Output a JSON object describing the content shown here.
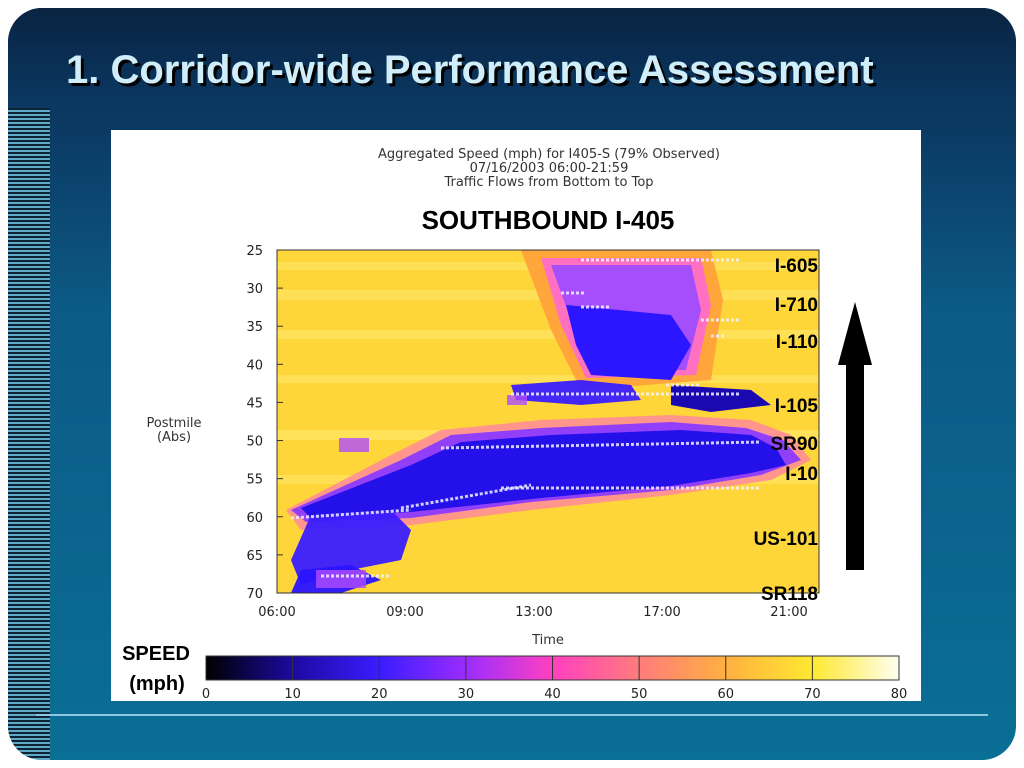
{
  "slide": {
    "title": "1. Corridor-wide Performance Assessment"
  },
  "chart_data": {
    "type": "heatmap",
    "title": "Aggregated Speed (mph) for I405-S (79% Observed)",
    "subtitle_lines": [
      "07/16/2003 06:00-21:59",
      "Traffic Flows from Bottom to Top"
    ],
    "heading": "SOUTHBOUND I-405",
    "xlabel": "Time",
    "ylabel_lines": [
      "Postmile",
      "(Abs)"
    ],
    "x_ticks": [
      "06:00",
      "09:00",
      "13:00",
      "17:00",
      "21:00"
    ],
    "y_ticks": [
      "25",
      "30",
      "35",
      "40",
      "45",
      "50",
      "55",
      "60",
      "65",
      "70"
    ],
    "y_range": [
      25,
      70
    ],
    "landmarks": [
      {
        "label": "I-605",
        "postmile": 27
      },
      {
        "label": "I-710",
        "postmile": 32
      },
      {
        "label": "I-110",
        "postmile": 37
      },
      {
        "label": "I-105",
        "postmile": 45
      },
      {
        "label": "SR90",
        "postmile": 50
      },
      {
        "label": "I-10",
        "postmile": 54
      },
      {
        "label": "US-101",
        "postmile": 63
      },
      {
        "label": "SR118",
        "postmile": 70
      }
    ],
    "direction": "up",
    "colorbar": {
      "label_lines": [
        "SPEED",
        "(mph)"
      ],
      "ticks": [
        "0",
        "10",
        "20",
        "30",
        "40",
        "50",
        "60",
        "70",
        "80"
      ],
      "range": [
        0,
        80
      ],
      "colors": [
        "#000000",
        "#1c0aa0",
        "#3a1cff",
        "#9a2cff",
        "#ff40c0",
        "#ff7c7c",
        "#ffb040",
        "#ffe830",
        "#fffff0"
      ]
    }
  }
}
